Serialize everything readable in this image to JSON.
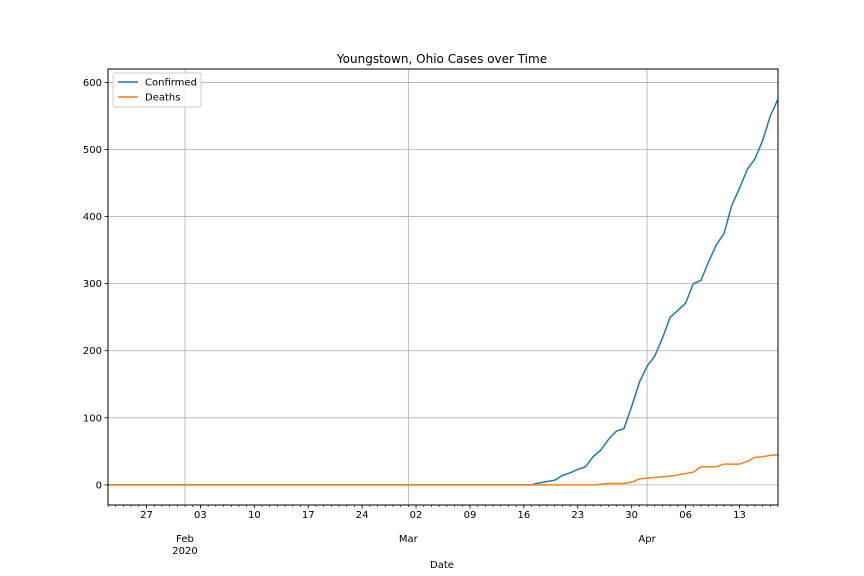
{
  "chart_data": {
    "type": "line",
    "title": "Youngstown, Ohio Cases over Time",
    "xlabel": "Date",
    "ylabel": "",
    "x_range": [
      "2020-01-22",
      "2020-04-18"
    ],
    "ylim": [
      -30,
      620
    ],
    "y_ticks": [
      0,
      100,
      200,
      300,
      400,
      500,
      600
    ],
    "x_major_ticks": [
      {
        "date": "2020-02-01",
        "label": "Feb",
        "label2": "2020"
      },
      {
        "date": "2020-03-01",
        "label": "Mar",
        "label2": ""
      },
      {
        "date": "2020-04-01",
        "label": "Apr",
        "label2": ""
      }
    ],
    "x_minor_ticks": [
      {
        "date": "2020-01-27",
        "label": "27"
      },
      {
        "date": "2020-02-03",
        "label": "03"
      },
      {
        "date": "2020-02-10",
        "label": "10"
      },
      {
        "date": "2020-02-17",
        "label": "17"
      },
      {
        "date": "2020-02-24",
        "label": "24"
      },
      {
        "date": "2020-03-02",
        "label": "02"
      },
      {
        "date": "2020-03-09",
        "label": "09"
      },
      {
        "date": "2020-03-16",
        "label": "16"
      },
      {
        "date": "2020-03-23",
        "label": "23"
      },
      {
        "date": "2020-03-30",
        "label": "30"
      },
      {
        "date": "2020-04-06",
        "label": "06"
      },
      {
        "date": "2020-04-13",
        "label": "13"
      }
    ],
    "grid": true,
    "legend_position": "top-left",
    "series": [
      {
        "name": "Confirmed",
        "color": "#1f77b4",
        "points": [
          [
            "2020-01-22",
            0
          ],
          [
            "2020-03-17",
            0
          ],
          [
            "2020-03-18",
            3
          ],
          [
            "2020-03-19",
            5
          ],
          [
            "2020-03-20",
            7
          ],
          [
            "2020-03-21",
            14
          ],
          [
            "2020-03-22",
            18
          ],
          [
            "2020-03-23",
            23
          ],
          [
            "2020-03-24",
            27
          ],
          [
            "2020-03-25",
            42
          ],
          [
            "2020-03-26",
            52
          ],
          [
            "2020-03-27",
            68
          ],
          [
            "2020-03-28",
            80
          ],
          [
            "2020-03-29",
            84
          ],
          [
            "2020-03-30",
            117
          ],
          [
            "2020-03-31",
            153
          ],
          [
            "2020-04-01",
            177
          ],
          [
            "2020-04-02",
            192
          ],
          [
            "2020-04-03",
            219
          ],
          [
            "2020-04-04",
            250
          ],
          [
            "2020-04-05",
            260
          ],
          [
            "2020-04-06",
            271
          ],
          [
            "2020-04-07",
            300
          ],
          [
            "2020-04-08",
            305
          ],
          [
            "2020-04-09",
            333
          ],
          [
            "2020-04-10",
            358
          ],
          [
            "2020-04-11",
            375
          ],
          [
            "2020-04-12",
            417
          ],
          [
            "2020-04-13",
            442
          ],
          [
            "2020-04-14",
            470
          ],
          [
            "2020-04-15",
            486
          ],
          [
            "2020-04-16",
            513
          ],
          [
            "2020-04-17",
            550
          ],
          [
            "2020-04-18",
            575
          ],
          [
            "2020-04-19",
            590
          ]
        ]
      },
      {
        "name": "Deaths",
        "color": "#ff7f0e",
        "points": [
          [
            "2020-01-22",
            0
          ],
          [
            "2020-03-25",
            0
          ],
          [
            "2020-03-26",
            1
          ],
          [
            "2020-03-27",
            2
          ],
          [
            "2020-03-28",
            2
          ],
          [
            "2020-03-29",
            2
          ],
          [
            "2020-03-30",
            4
          ],
          [
            "2020-03-31",
            9
          ],
          [
            "2020-04-01",
            10
          ],
          [
            "2020-04-02",
            11
          ],
          [
            "2020-04-03",
            12
          ],
          [
            "2020-04-04",
            13
          ],
          [
            "2020-04-05",
            15
          ],
          [
            "2020-04-06",
            17
          ],
          [
            "2020-04-07",
            19
          ],
          [
            "2020-04-08",
            27
          ],
          [
            "2020-04-09",
            27
          ],
          [
            "2020-04-10",
            27
          ],
          [
            "2020-04-11",
            31
          ],
          [
            "2020-04-12",
            31
          ],
          [
            "2020-04-13",
            31
          ],
          [
            "2020-04-14",
            35
          ],
          [
            "2020-04-15",
            41
          ],
          [
            "2020-04-16",
            42
          ],
          [
            "2020-04-17",
            44
          ],
          [
            "2020-04-18",
            45
          ],
          [
            "2020-04-19",
            48
          ]
        ]
      }
    ]
  }
}
